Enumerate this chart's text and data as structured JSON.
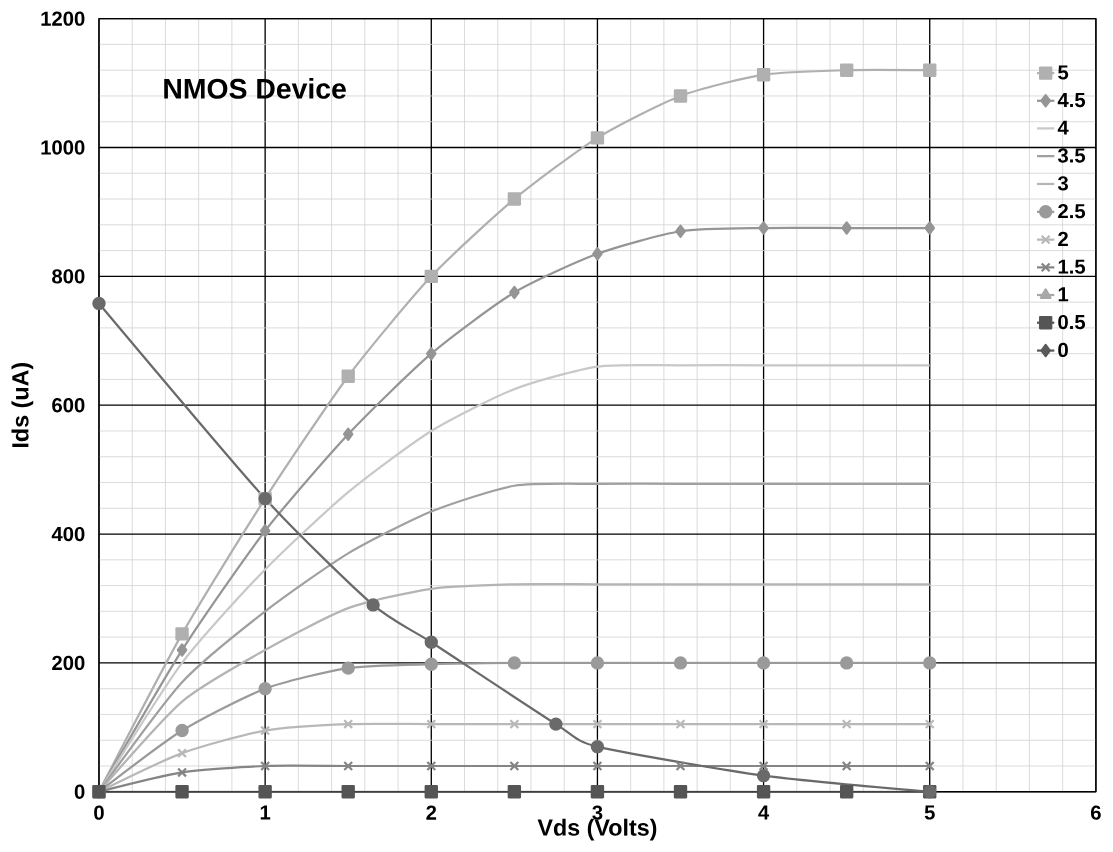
{
  "chart_data": {
    "type": "line",
    "title": "NMOS Device",
    "xlabel": "Vds (Volts)",
    "ylabel": "Ids (uA)",
    "x": [
      0,
      0.5,
      1,
      1.5,
      2,
      2.5,
      3,
      3.5,
      4,
      4.5,
      5
    ],
    "xlim": [
      0,
      6
    ],
    "ylim": [
      0,
      1200
    ],
    "xticks": [
      0,
      1,
      2,
      3,
      4,
      5,
      6
    ],
    "yticks": [
      0,
      200,
      400,
      600,
      800,
      1000,
      1200
    ],
    "grid": true,
    "legend": "right",
    "series": [
      {
        "name": "5",
        "color": "#b0b0b0",
        "marker": "square",
        "values": [
          0,
          245,
          455,
          645,
          800,
          920,
          1015,
          1080,
          1113,
          1120,
          1120
        ]
      },
      {
        "name": "4.5",
        "color": "#959595",
        "marker": "diamond",
        "values": [
          0,
          220,
          405,
          555,
          680,
          775,
          835,
          870,
          875,
          875,
          875
        ]
      },
      {
        "name": "4",
        "color": "#c8c8c8",
        "marker": "none",
        "values": [
          0,
          200,
          345,
          465,
          560,
          625,
          660,
          662,
          662,
          662,
          662
        ]
      },
      {
        "name": "3.5",
        "color": "#a0a0a0",
        "marker": "none",
        "values": [
          0,
          170,
          280,
          370,
          435,
          475,
          478,
          478,
          478,
          478,
          478
        ]
      },
      {
        "name": "3",
        "color": "#b4b4b4",
        "marker": "none",
        "values": [
          0,
          140,
          220,
          285,
          315,
          322,
          322,
          322,
          322,
          322,
          322
        ]
      },
      {
        "name": "2.5",
        "color": "#9a9a9a",
        "marker": "circle",
        "values": [
          0,
          95,
          160,
          192,
          198,
          200,
          200,
          200,
          200,
          200,
          200
        ]
      },
      {
        "name": "2",
        "color": "#b8b8b8",
        "marker": "cross",
        "values": [
          0,
          60,
          95,
          105,
          105,
          105,
          105,
          105,
          105,
          105,
          105
        ]
      },
      {
        "name": "1.5",
        "color": "#858585",
        "marker": "cross",
        "values": [
          0,
          30,
          40,
          40,
          40,
          40,
          40,
          40,
          40,
          40,
          40
        ]
      },
      {
        "name": "1",
        "color": "#a8a8a8",
        "marker": "triangle",
        "values": [
          null,
          null,
          null,
          null,
          null,
          null,
          null,
          null,
          null,
          null,
          null
        ]
      },
      {
        "name": "0.5",
        "color": "#555555",
        "marker": "square",
        "values": [
          0,
          0,
          0,
          0,
          0,
          0,
          0,
          0,
          0,
          0,
          0
        ]
      },
      {
        "name": "0",
        "color": "#5a5a5a",
        "marker": "diamond",
        "values": [
          null,
          null,
          null,
          null,
          null,
          null,
          null,
          null,
          null,
          null,
          null
        ]
      },
      {
        "color": "#6a6a6a",
        "marker": "circle",
        "x": [
          0,
          1,
          1.65,
          2,
          2.75,
          3,
          4,
          5
        ],
        "values": [
          758,
          455,
          290,
          232,
          105,
          70,
          25,
          0
        ]
      }
    ]
  }
}
